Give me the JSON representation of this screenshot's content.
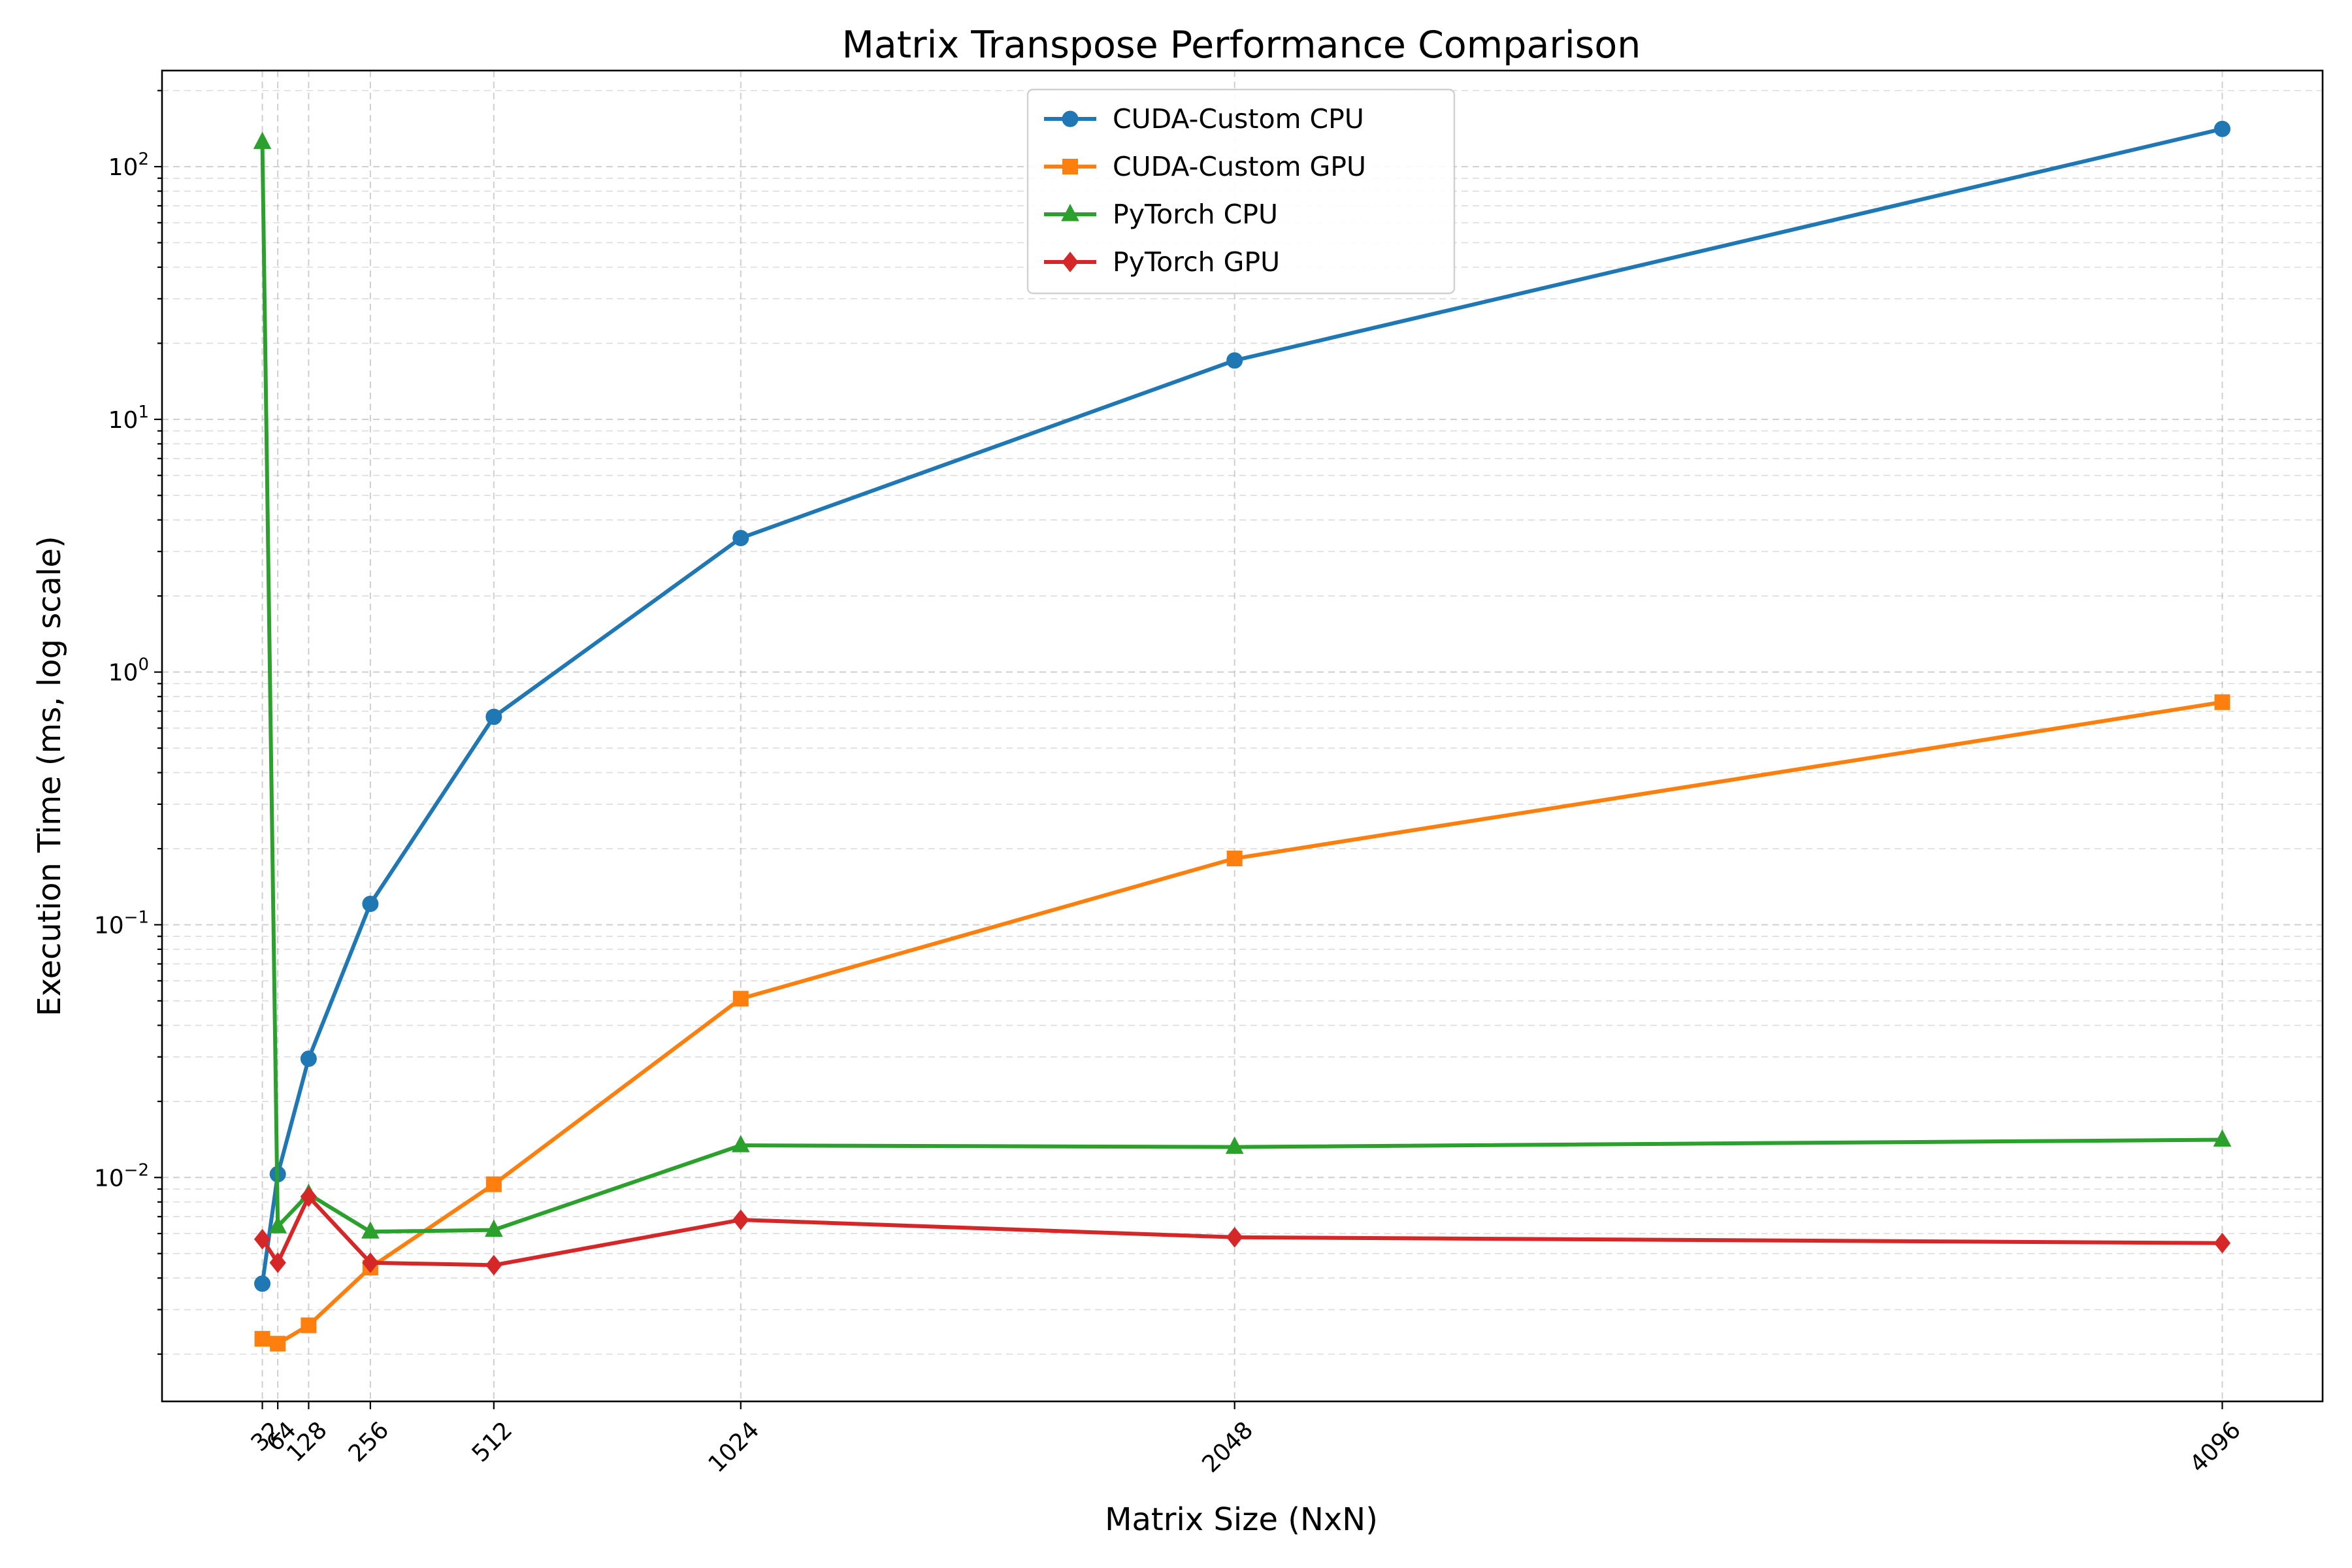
{
  "chart_data": {
    "type": "line",
    "title": "Matrix Transpose Performance Comparison",
    "xlabel": "Matrix Size (NxN)",
    "ylabel": "Execution Time (ms, log scale)",
    "x": [
      32,
      64,
      128,
      256,
      512,
      1024,
      2048,
      4096
    ],
    "xlim": [
      -176,
      4304
    ],
    "yscale": "log",
    "ylim": [
      0.0013,
      240
    ],
    "y_ticks": [
      0.01,
      0.1,
      1,
      10,
      100
    ],
    "y_tick_labels": [
      {
        "base": "10",
        "exp": "−2"
      },
      {
        "base": "10",
        "exp": "−1"
      },
      {
        "base": "10",
        "exp": "0"
      },
      {
        "base": "10",
        "exp": "1"
      },
      {
        "base": "10",
        "exp": "2"
      }
    ],
    "x_tick_labels": [
      "32",
      "64",
      "128",
      "256",
      "512",
      "1024",
      "2048",
      "4096"
    ],
    "grid": true,
    "legend_position": "top-center",
    "series": [
      {
        "name": "CUDA-Custom CPU",
        "color": "#1f77b4",
        "marker": "circle",
        "values": [
          0.0038,
          0.0103,
          0.0295,
          0.121,
          0.665,
          3.39,
          17.1,
          141
        ]
      },
      {
        "name": "CUDA-Custom GPU",
        "color": "#ff7f0e",
        "marker": "square",
        "values": [
          0.0023,
          0.0022,
          0.0026,
          0.0044,
          0.0094,
          0.051,
          0.183,
          0.76
        ]
      },
      {
        "name": "PyTorch CPU",
        "color": "#2ca02c",
        "marker": "triangle",
        "values": [
          125,
          0.0064,
          0.0086,
          0.0061,
          0.0062,
          0.0134,
          0.0132,
          0.0141
        ]
      },
      {
        "name": "PyTorch GPU",
        "color": "#d62728",
        "marker": "diamond",
        "values": [
          0.0057,
          0.0046,
          0.0084,
          0.0046,
          0.0045,
          0.0068,
          0.0058,
          0.0055
        ]
      }
    ]
  }
}
